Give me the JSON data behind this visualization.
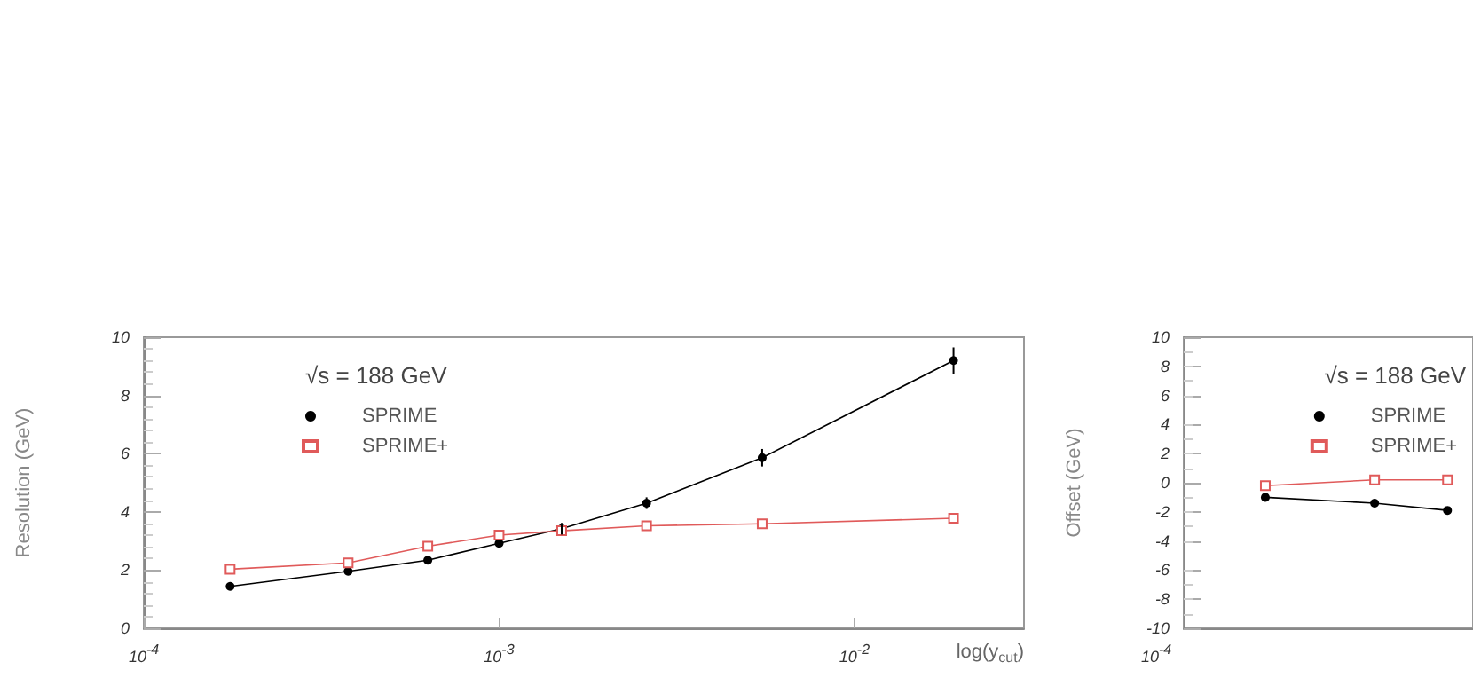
{
  "chart_data": [
    {
      "type": "line",
      "xlabel": "log(y$_{cut}$)",
      "ylabel": "Resolution (GeV)",
      "legend_title": "√s = 188 GeV",
      "legend": "top left",
      "grid": false,
      "log": "x",
      "xlim": [
        0.0001,
        0.03
      ],
      "xticks": [
        {
          "value": 0.0001,
          "label": "10$^{-4}$"
        },
        {
          "value": 0.001,
          "label": "10$^{-3}$"
        },
        {
          "value": 0.01,
          "label": "10$^{-2}$"
        }
      ],
      "ylim": [
        0,
        10
      ],
      "yticks": [
        0,
        2,
        4,
        6,
        8,
        10
      ],
      "x": [
        0.000175,
        0.000376,
        0.00063,
        0.001,
        0.0015,
        0.0026,
        0.0055,
        0.019
      ],
      "series": [
        {
          "name": "SPRIME",
          "color": "#000000",
          "marker": "circle",
          "values": [
            1.44,
            1.96,
            2.34,
            2.92,
            3.42,
            4.3,
            5.86,
            9.2
          ],
          "errors": [
            0.05,
            0.05,
            0.08,
            0.1,
            0.2,
            0.2,
            0.3,
            0.45
          ]
        },
        {
          "name": "SPRIME+",
          "color": "#e05a5a",
          "marker": "square",
          "values": [
            2.03,
            2.25,
            2.82,
            3.2,
            3.35,
            3.52,
            3.59,
            3.78
          ]
        }
      ]
    },
    {
      "type": "line",
      "ylabel": "Offset (GeV)",
      "legend_title": "√s = 188 GeV",
      "grid": false,
      "annotations": [
        "10$^{-4}$"
      ],
      "legend": "top right",
      "ylim": [
        -10,
        10
      ],
      "yticks": [
        -10,
        -8,
        -6,
        -4,
        -2,
        0,
        2,
        4,
        6,
        8,
        10
      ],
      "categories": [
        null,
        null,
        null,
        null,
        null,
        null
      ],
      "series": [
        {
          "name": "SPRIME",
          "color": "#000000",
          "marker": "circle",
          "values": [
            -1.0,
            null,
            null,
            -1.4,
            null,
            -1.9
          ]
        },
        {
          "name": "SPRIME+",
          "color": "#e05a5a",
          "marker": "square",
          "values": [
            -0.2,
            null,
            null,
            0.2,
            null,
            0.2
          ]
        }
      ]
    }
  ]
}
